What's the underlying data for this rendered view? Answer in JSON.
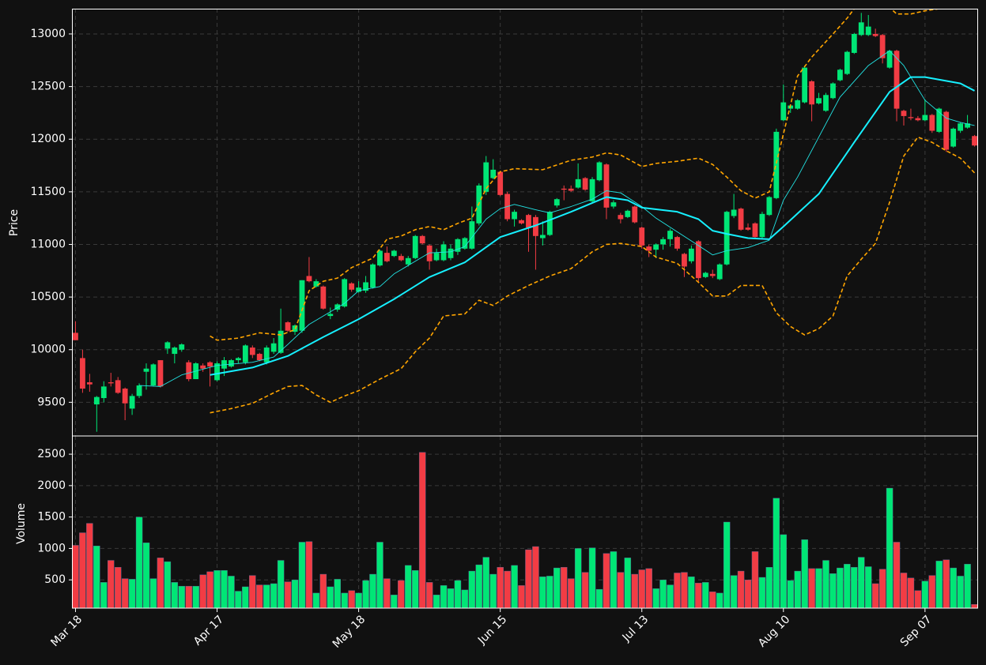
{
  "chart_data": [
    {
      "type": "candlestick",
      "y_label": "Price",
      "ylim": [
        9180,
        13240
      ],
      "yticks": [
        9500,
        10000,
        10500,
        11000,
        11500,
        12000,
        12500,
        13000
      ],
      "grid": true,
      "up_color": "#00e676",
      "down_color": "#f23c44",
      "open": [
        10160,
        9920,
        9690,
        9480,
        9540,
        9690,
        9710,
        9630,
        9440,
        9560,
        9790,
        9660,
        9900,
        10010,
        9960,
        10000,
        9880,
        9720,
        9850,
        9880,
        9710,
        9820,
        9840,
        9900,
        9880,
        10020,
        9960,
        9880,
        9980,
        9970,
        10260,
        10170,
        10180,
        10700,
        10600,
        10600,
        10320,
        10380,
        10410,
        10630,
        10550,
        10560,
        10590,
        10800,
        10920,
        10890,
        10890,
        10810,
        10870,
        11080,
        10990,
        10850,
        10850,
        10870,
        10930,
        10960,
        10960,
        11200,
        11500,
        11630,
        11690,
        11480,
        11240,
        11230,
        11280,
        11260,
        11060,
        11090,
        11370,
        11530,
        11530,
        11540,
        11630,
        11410,
        11610,
        11760,
        11360,
        11280,
        11260,
        11360,
        11160,
        10980,
        10950,
        11000,
        11050,
        11070,
        10910,
        10840,
        11030,
        10690,
        10720,
        10670,
        10810,
        11270,
        11340,
        11160,
        11200,
        11070,
        11280,
        11440,
        12180,
        12290,
        12290,
        12350,
        12550,
        12340,
        12270,
        12390,
        12560,
        12620,
        12820,
        12990,
        12990,
        13000,
        12990,
        12680,
        12840,
        12270,
        12210,
        12200,
        12180,
        12230,
        12070,
        12260,
        11930,
        12080,
        12110,
        12030
      ],
      "high": [
        10270,
        10000,
        9770,
        9560,
        9700,
        9780,
        9740,
        9640,
        9580,
        9680,
        9870,
        9870,
        9900,
        10080,
        10030,
        10060,
        9900,
        9880,
        9870,
        9890,
        9890,
        9930,
        9910,
        9930,
        10050,
        10040,
        9970,
        10040,
        10110,
        10390,
        10270,
        10240,
        10660,
        10880,
        10670,
        10610,
        10400,
        10440,
        10680,
        10640,
        10650,
        10700,
        10820,
        10950,
        10980,
        10950,
        10910,
        10890,
        11090,
        11090,
        11000,
        10960,
        11030,
        11000,
        11060,
        11070,
        11360,
        11580,
        11840,
        11810,
        11700,
        11500,
        11330,
        11240,
        11290,
        11280,
        11220,
        11320,
        11440,
        11560,
        11560,
        11770,
        11640,
        11640,
        11790,
        11770,
        11420,
        11300,
        11330,
        11370,
        11170,
        11000,
        11010,
        11070,
        11150,
        11080,
        10920,
        10990,
        11040,
        10740,
        10760,
        10820,
        11320,
        11480,
        11350,
        11200,
        11210,
        11310,
        11460,
        12100,
        12520,
        12330,
        12380,
        12700,
        12560,
        12440,
        12440,
        12540,
        12670,
        12840,
        13010,
        13200,
        13180,
        13050,
        13000,
        12850,
        12850,
        12280,
        12290,
        12220,
        12380,
        12240,
        12300,
        12270,
        12110,
        12160,
        12230,
        12040
      ],
      "low": [
        10090,
        9590,
        9600,
        9220,
        9500,
        9650,
        9580,
        9330,
        9380,
        9540,
        9620,
        9650,
        9640,
        9960,
        9870,
        9980,
        9700,
        9720,
        9790,
        9650,
        9700,
        9750,
        9830,
        9870,
        9860,
        9920,
        9890,
        9860,
        9960,
        9960,
        10170,
        10140,
        10160,
        10640,
        10590,
        10380,
        10290,
        10360,
        10400,
        10550,
        10540,
        10540,
        10580,
        10790,
        10830,
        10880,
        10840,
        10790,
        10860,
        11000,
        10760,
        10840,
        10840,
        10850,
        10900,
        10950,
        10950,
        11180,
        11470,
        11620,
        11460,
        11220,
        11170,
        11190,
        10930,
        10760,
        10990,
        11080,
        11350,
        11420,
        11500,
        11530,
        11510,
        11390,
        11600,
        11240,
        11340,
        11200,
        11250,
        11200,
        10960,
        10880,
        10870,
        10950,
        10980,
        10940,
        10690,
        10820,
        10640,
        10680,
        10680,
        10660,
        10800,
        11250,
        11130,
        11130,
        11060,
        11060,
        11270,
        11430,
        12170,
        12250,
        12280,
        12340,
        12170,
        12330,
        12260,
        12380,
        12550,
        12610,
        12810,
        12980,
        12980,
        12970,
        12720,
        12670,
        12170,
        12130,
        12180,
        12170,
        12170,
        12060,
        12060,
        11880,
        11920,
        12060,
        12100,
        11930
      ],
      "close": [
        10090,
        9630,
        9670,
        9550,
        9650,
        9680,
        9590,
        9490,
        9560,
        9660,
        9820,
        9860,
        9650,
        10070,
        10020,
        10050,
        9720,
        9870,
        9820,
        9840,
        9870,
        9900,
        9900,
        9920,
        10040,
        9950,
        9900,
        10020,
        10060,
        10180,
        10180,
        10230,
        10660,
        10650,
        10650,
        10390,
        10340,
        10430,
        10670,
        10570,
        10590,
        10640,
        10810,
        10940,
        10840,
        10940,
        10850,
        10870,
        11080,
        11010,
        10840,
        10920,
        11000,
        10960,
        11050,
        11060,
        11220,
        11560,
        11780,
        11710,
        11470,
        11240,
        11310,
        11200,
        11160,
        11080,
        11090,
        11310,
        11430,
        11520,
        11510,
        11620,
        11520,
        11620,
        11780,
        11350,
        11400,
        11240,
        11320,
        11210,
        10990,
        10940,
        11000,
        11050,
        11130,
        10960,
        10790,
        10960,
        10680,
        10730,
        10700,
        10810,
        11310,
        11330,
        11140,
        11140,
        11070,
        11290,
        11450,
        12070,
        12350,
        12320,
        12370,
        12680,
        12330,
        12390,
        12420,
        12530,
        12660,
        12830,
        13000,
        13110,
        13070,
        12980,
        12770,
        12840,
        12290,
        12220,
        12200,
        12180,
        12230,
        12080,
        12290,
        11900,
        12100,
        12150,
        12150,
        11940
      ],
      "series": [
        {
          "color": "#22e5e5",
          "width": 0.9,
          "dash": false,
          "x": [
            9,
            12,
            15,
            20,
            25,
            28,
            30,
            33,
            35,
            38,
            40,
            43,
            45,
            48,
            50,
            53,
            55,
            58,
            60,
            62,
            65,
            67,
            70,
            73,
            75,
            77,
            80,
            82,
            85,
            88,
            90,
            92,
            95,
            98,
            100,
            102,
            105,
            108,
            110,
            112,
            115,
            117,
            120,
            123,
            125,
            127
          ],
          "values": [
            9660,
            9650,
            9760,
            9850,
            9880,
            9930,
            10050,
            10240,
            10320,
            10440,
            10560,
            10600,
            10720,
            10840,
            10920,
            10930,
            10980,
            11240,
            11340,
            11380,
            11330,
            11300,
            11360,
            11430,
            11510,
            11490,
            11360,
            11250,
            11120,
            10990,
            10900,
            10940,
            10970,
            11040,
            11420,
            11640,
            12020,
            12400,
            12550,
            12700,
            12840,
            12700,
            12370,
            12200,
            12160,
            12130
          ]
        },
        {
          "color": "#16f0ff",
          "width": 2,
          "dash": false,
          "x": [
            19,
            25,
            30,
            35,
            40,
            45,
            50,
            55,
            60,
            65,
            70,
            75,
            78,
            80,
            85,
            88,
            90,
            92,
            95,
            98,
            100,
            105,
            110,
            115,
            118,
            120,
            125,
            127
          ],
          "values": [
            9760,
            9830,
            9940,
            10120,
            10290,
            10480,
            10690,
            10830,
            11070,
            11180,
            11310,
            11450,
            11420,
            11350,
            11310,
            11240,
            11130,
            11100,
            11060,
            11050,
            11170,
            11480,
            11970,
            12450,
            12590,
            12590,
            12530,
            12460
          ]
        },
        {
          "color": "#ffa500",
          "width": 1.6,
          "dash": true,
          "x": [
            19,
            20,
            23,
            26,
            29,
            31,
            33,
            35,
            37,
            39,
            42,
            44,
            46,
            48,
            50,
            52,
            54,
            56,
            58,
            60,
            62,
            66,
            70,
            73,
            75,
            77,
            80,
            82,
            85,
            88,
            90,
            92,
            94,
            96,
            98,
            100,
            102,
            104,
            107,
            109,
            110,
            111,
            112,
            113,
            114,
            115,
            116,
            118,
            120,
            122,
            124,
            127
          ],
          "values": [
            10130,
            10090,
            10110,
            10160,
            10140,
            10190,
            10560,
            10650,
            10680,
            10780,
            10870,
            11050,
            11080,
            11140,
            11170,
            11140,
            11200,
            11250,
            11530,
            11690,
            11720,
            11710,
            11800,
            11830,
            11870,
            11850,
            11740,
            11770,
            11790,
            11820,
            11760,
            11640,
            11510,
            11440,
            11500,
            12050,
            12600,
            12780,
            13000,
            13150,
            13240,
            13330,
            13350,
            13360,
            13320,
            13250,
            13190,
            13190,
            13220,
            13240,
            13320,
            13400
          ]
        },
        {
          "color": "#ffa500",
          "width": 1.6,
          "dash": true,
          "x": [
            19,
            22,
            25,
            28,
            30,
            32,
            34,
            36,
            38,
            40,
            43,
            46,
            48,
            50,
            52,
            55,
            57,
            59,
            61,
            64,
            67,
            70,
            73,
            75,
            77,
            80,
            82,
            85,
            88,
            90,
            92,
            94,
            97,
            99,
            101,
            103,
            105,
            107,
            109,
            111,
            113,
            115,
            117,
            119,
            121,
            123,
            125,
            127
          ],
          "values": [
            9400,
            9440,
            9490,
            9590,
            9650,
            9660,
            9570,
            9500,
            9560,
            9610,
            9720,
            9820,
            9980,
            10110,
            10320,
            10340,
            10470,
            10420,
            10510,
            10610,
            10700,
            10770,
            10930,
            11000,
            11010,
            10980,
            10880,
            10820,
            10640,
            10510,
            10510,
            10610,
            10610,
            10350,
            10220,
            10140,
            10200,
            10320,
            10700,
            10860,
            11010,
            11400,
            11840,
            12020,
            11970,
            11890,
            11820,
            11680
          ]
        }
      ]
    },
    {
      "type": "bar",
      "y_label": "Volume",
      "categories": [
        "Mar 18",
        null,
        null,
        null,
        null,
        null,
        null,
        null,
        null,
        null,
        null,
        null,
        null,
        null,
        null,
        null,
        null,
        null,
        null,
        null,
        "Apr 17",
        null,
        null,
        null,
        null,
        null,
        null,
        null,
        null,
        null,
        null,
        null,
        null,
        null,
        null,
        null,
        null,
        null,
        null,
        null,
        "May 18",
        null,
        null,
        null,
        null,
        null,
        null,
        null,
        null,
        null,
        null,
        null,
        null,
        null,
        null,
        null,
        null,
        null,
        null,
        null,
        "Jun 15",
        null,
        null,
        null,
        null,
        null,
        null,
        null,
        null,
        null,
        null,
        null,
        null,
        null,
        null,
        null,
        null,
        null,
        null,
        null,
        "Jul 13",
        null,
        null,
        null,
        null,
        null,
        null,
        null,
        null,
        null,
        null,
        null,
        null,
        null,
        null,
        null,
        null,
        null,
        null,
        null,
        "Aug 10",
        null,
        null,
        null,
        null,
        null,
        null,
        null,
        null,
        null,
        null,
        null,
        null,
        null,
        null,
        null,
        null,
        null,
        null,
        null,
        "Sep 07",
        null,
        null,
        null,
        null,
        null,
        null,
        null
      ],
      "values": [
        1050,
        1250,
        1400,
        1040,
        460,
        810,
        700,
        520,
        510,
        1500,
        1090,
        520,
        850,
        790,
        460,
        400,
        400,
        400,
        580,
        630,
        650,
        650,
        560,
        320,
        390,
        570,
        420,
        420,
        440,
        810,
        470,
        500,
        1100,
        1110,
        290,
        590,
        390,
        510,
        290,
        330,
        290,
        490,
        590,
        1100,
        520,
        260,
        490,
        730,
        650,
        2530,
        460,
        260,
        410,
        360,
        490,
        340,
        640,
        740,
        860,
        590,
        700,
        640,
        730,
        410,
        980,
        1030,
        550,
        560,
        690,
        700,
        520,
        1000,
        620,
        1010,
        350,
        920,
        950,
        620,
        850,
        590,
        660,
        680,
        360,
        500,
        420,
        610,
        620,
        550,
        450,
        460,
        310,
        290,
        1420,
        570,
        640,
        500,
        950,
        540,
        700,
        1800,
        1220,
        490,
        640,
        1140,
        680,
        680,
        810,
        600,
        690,
        750,
        700,
        860,
        710,
        440,
        670,
        1960,
        1100,
        610,
        530,
        330,
        480,
        570,
        800,
        820,
        690,
        560,
        750,
        110
      ],
      "ylim": [
        50,
        2790
      ],
      "yticks": [
        500,
        1000,
        1500,
        2000,
        2500
      ],
      "grid": true
    }
  ]
}
